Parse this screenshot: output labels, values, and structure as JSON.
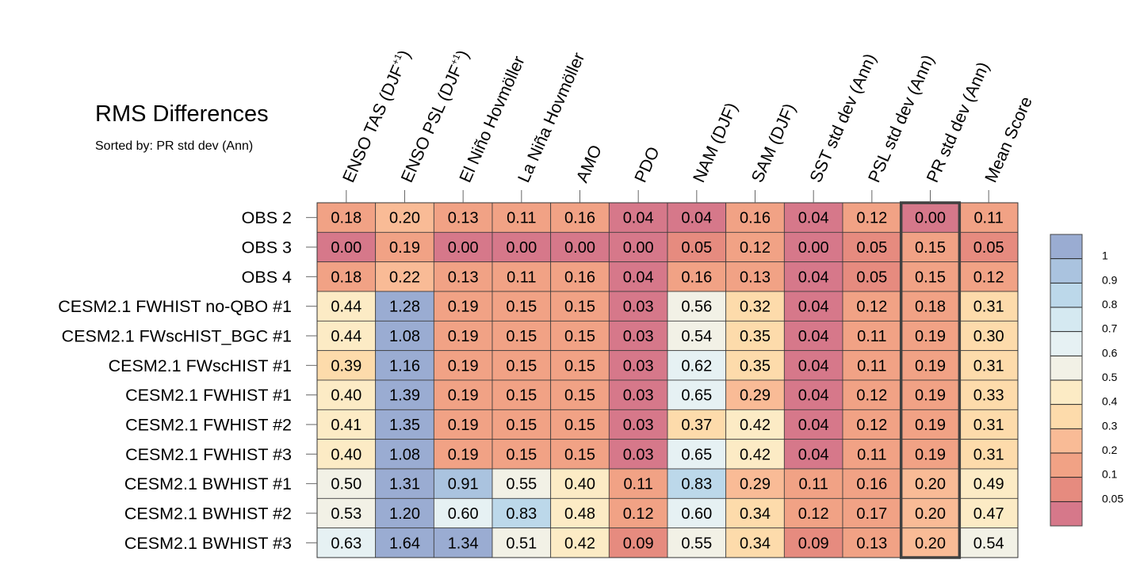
{
  "chart_data": {
    "type": "heatmap",
    "title": "RMS Differences",
    "subtitle": "Sorted by: PR std dev (Ann)",
    "columns": [
      {
        "text": "ENSO TAS (DJF",
        "sup": "+1",
        "tail": ")"
      },
      {
        "text": "ENSO PSL (DJF",
        "sup": "+1",
        "tail": ")"
      },
      {
        "text": "El Niño Hovmöller",
        "sup": "",
        "tail": ""
      },
      {
        "text": "La Niña Hovmöller",
        "sup": "",
        "tail": ""
      },
      {
        "text": "AMO",
        "sup": "",
        "tail": ""
      },
      {
        "text": "PDO",
        "sup": "",
        "tail": ""
      },
      {
        "text": "NAM (DJF)",
        "sup": "",
        "tail": ""
      },
      {
        "text": "SAM (DJF)",
        "sup": "",
        "tail": ""
      },
      {
        "text": "SST std dev (Ann)",
        "sup": "",
        "tail": ""
      },
      {
        "text": "PSL std dev (Ann)",
        "sup": "",
        "tail": ""
      },
      {
        "text": "PR std dev (Ann)",
        "sup": "",
        "tail": ""
      },
      {
        "text": "Mean Score",
        "sup": "",
        "tail": ""
      }
    ],
    "rows": [
      "OBS 2",
      "OBS 3",
      "OBS 4",
      "CESM2.1 FWHIST no-QBO #1",
      "CESM2.1 FWscHIST_BGC #1",
      "CESM2.1 FWscHIST #1",
      "CESM2.1 FWHIST #1",
      "CESM2.1 FWHIST #2",
      "CESM2.1 FWHIST #3",
      "CESM2.1 BWHIST #1",
      "CESM2.1 BWHIST #2",
      "CESM2.1 BWHIST #3"
    ],
    "values": [
      [
        "0.18",
        "0.20",
        "0.13",
        "0.11",
        "0.16",
        "0.04",
        "0.04",
        "0.16",
        "0.04",
        "0.12",
        "0.00",
        "0.11"
      ],
      [
        "0.00",
        "0.19",
        "0.00",
        "0.00",
        "0.00",
        "0.00",
        "0.05",
        "0.12",
        "0.00",
        "0.05",
        "0.15",
        "0.05"
      ],
      [
        "0.18",
        "0.22",
        "0.13",
        "0.11",
        "0.16",
        "0.04",
        "0.16",
        "0.13",
        "0.04",
        "0.05",
        "0.15",
        "0.12"
      ],
      [
        "0.44",
        "1.28",
        "0.19",
        "0.15",
        "0.15",
        "0.03",
        "0.56",
        "0.32",
        "0.04",
        "0.12",
        "0.18",
        "0.31"
      ],
      [
        "0.44",
        "1.08",
        "0.19",
        "0.15",
        "0.15",
        "0.03",
        "0.54",
        "0.35",
        "0.04",
        "0.11",
        "0.19",
        "0.30"
      ],
      [
        "0.39",
        "1.16",
        "0.19",
        "0.15",
        "0.15",
        "0.03",
        "0.62",
        "0.35",
        "0.04",
        "0.11",
        "0.19",
        "0.31"
      ],
      [
        "0.40",
        "1.39",
        "0.19",
        "0.15",
        "0.15",
        "0.03",
        "0.65",
        "0.29",
        "0.04",
        "0.12",
        "0.19",
        "0.33"
      ],
      [
        "0.41",
        "1.35",
        "0.19",
        "0.15",
        "0.15",
        "0.03",
        "0.37",
        "0.42",
        "0.04",
        "0.12",
        "0.19",
        "0.31"
      ],
      [
        "0.40",
        "1.08",
        "0.19",
        "0.15",
        "0.15",
        "0.03",
        "0.65",
        "0.42",
        "0.04",
        "0.11",
        "0.19",
        "0.31"
      ],
      [
        "0.50",
        "1.31",
        "0.91",
        "0.55",
        "0.40",
        "0.11",
        "0.83",
        "0.29",
        "0.11",
        "0.16",
        "0.20",
        "0.49"
      ],
      [
        "0.53",
        "1.20",
        "0.60",
        "0.83",
        "0.48",
        "0.12",
        "0.60",
        "0.34",
        "0.12",
        "0.17",
        "0.20",
        "0.47"
      ],
      [
        "0.63",
        "1.64",
        "1.34",
        "0.51",
        "0.42",
        "0.09",
        "0.55",
        "0.34",
        "0.09",
        "0.13",
        "0.20",
        "0.54"
      ]
    ],
    "highlighted_column": "PR std dev (Ann)",
    "colorbar": {
      "levels": [
        "1",
        "0.9",
        "0.8",
        "0.7",
        "0.6",
        "0.5",
        "0.4",
        "0.3",
        "0.2",
        "0.1",
        "0.05"
      ],
      "colors": [
        "#9aacd2",
        "#aac3df",
        "#bcd8ea",
        "#d5e9f1",
        "#e6f1f3",
        "#f2f1e6",
        "#fcebc5",
        "#fddbab",
        "#f9bb96",
        "#f1a285",
        "#e68b7f",
        "#d6788a"
      ]
    }
  }
}
